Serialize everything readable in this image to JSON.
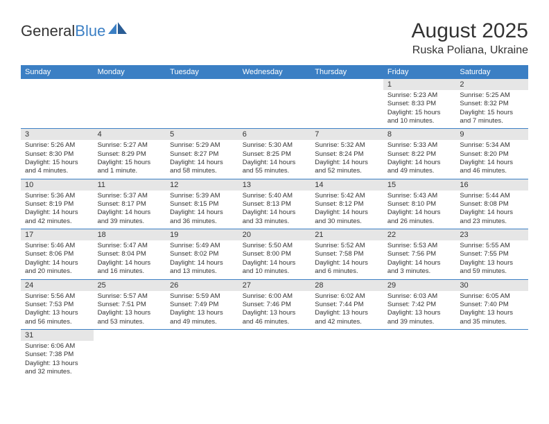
{
  "logo": {
    "text1": "General",
    "text2": "Blue"
  },
  "title": "August 2025",
  "location": "Ruska Poliana, Ukraine",
  "colors": {
    "header_bg": "#3b7fc4",
    "header_text": "#ffffff",
    "date_bg": "#e6e6e6",
    "text": "#333333",
    "divider": "#3b7fc4"
  },
  "daynames": [
    "Sunday",
    "Monday",
    "Tuesday",
    "Wednesday",
    "Thursday",
    "Friday",
    "Saturday"
  ],
  "weeks": [
    [
      null,
      null,
      null,
      null,
      null,
      {
        "date": "1",
        "sunrise": "Sunrise: 5:23 AM",
        "sunset": "Sunset: 8:33 PM",
        "daylight": "Daylight: 15 hours and 10 minutes."
      },
      {
        "date": "2",
        "sunrise": "Sunrise: 5:25 AM",
        "sunset": "Sunset: 8:32 PM",
        "daylight": "Daylight: 15 hours and 7 minutes."
      }
    ],
    [
      {
        "date": "3",
        "sunrise": "Sunrise: 5:26 AM",
        "sunset": "Sunset: 8:30 PM",
        "daylight": "Daylight: 15 hours and 4 minutes."
      },
      {
        "date": "4",
        "sunrise": "Sunrise: 5:27 AM",
        "sunset": "Sunset: 8:29 PM",
        "daylight": "Daylight: 15 hours and 1 minute."
      },
      {
        "date": "5",
        "sunrise": "Sunrise: 5:29 AM",
        "sunset": "Sunset: 8:27 PM",
        "daylight": "Daylight: 14 hours and 58 minutes."
      },
      {
        "date": "6",
        "sunrise": "Sunrise: 5:30 AM",
        "sunset": "Sunset: 8:25 PM",
        "daylight": "Daylight: 14 hours and 55 minutes."
      },
      {
        "date": "7",
        "sunrise": "Sunrise: 5:32 AM",
        "sunset": "Sunset: 8:24 PM",
        "daylight": "Daylight: 14 hours and 52 minutes."
      },
      {
        "date": "8",
        "sunrise": "Sunrise: 5:33 AM",
        "sunset": "Sunset: 8:22 PM",
        "daylight": "Daylight: 14 hours and 49 minutes."
      },
      {
        "date": "9",
        "sunrise": "Sunrise: 5:34 AM",
        "sunset": "Sunset: 8:20 PM",
        "daylight": "Daylight: 14 hours and 46 minutes."
      }
    ],
    [
      {
        "date": "10",
        "sunrise": "Sunrise: 5:36 AM",
        "sunset": "Sunset: 8:19 PM",
        "daylight": "Daylight: 14 hours and 42 minutes."
      },
      {
        "date": "11",
        "sunrise": "Sunrise: 5:37 AM",
        "sunset": "Sunset: 8:17 PM",
        "daylight": "Daylight: 14 hours and 39 minutes."
      },
      {
        "date": "12",
        "sunrise": "Sunrise: 5:39 AM",
        "sunset": "Sunset: 8:15 PM",
        "daylight": "Daylight: 14 hours and 36 minutes."
      },
      {
        "date": "13",
        "sunrise": "Sunrise: 5:40 AM",
        "sunset": "Sunset: 8:13 PM",
        "daylight": "Daylight: 14 hours and 33 minutes."
      },
      {
        "date": "14",
        "sunrise": "Sunrise: 5:42 AM",
        "sunset": "Sunset: 8:12 PM",
        "daylight": "Daylight: 14 hours and 30 minutes."
      },
      {
        "date": "15",
        "sunrise": "Sunrise: 5:43 AM",
        "sunset": "Sunset: 8:10 PM",
        "daylight": "Daylight: 14 hours and 26 minutes."
      },
      {
        "date": "16",
        "sunrise": "Sunrise: 5:44 AM",
        "sunset": "Sunset: 8:08 PM",
        "daylight": "Daylight: 14 hours and 23 minutes."
      }
    ],
    [
      {
        "date": "17",
        "sunrise": "Sunrise: 5:46 AM",
        "sunset": "Sunset: 8:06 PM",
        "daylight": "Daylight: 14 hours and 20 minutes."
      },
      {
        "date": "18",
        "sunrise": "Sunrise: 5:47 AM",
        "sunset": "Sunset: 8:04 PM",
        "daylight": "Daylight: 14 hours and 16 minutes."
      },
      {
        "date": "19",
        "sunrise": "Sunrise: 5:49 AM",
        "sunset": "Sunset: 8:02 PM",
        "daylight": "Daylight: 14 hours and 13 minutes."
      },
      {
        "date": "20",
        "sunrise": "Sunrise: 5:50 AM",
        "sunset": "Sunset: 8:00 PM",
        "daylight": "Daylight: 14 hours and 10 minutes."
      },
      {
        "date": "21",
        "sunrise": "Sunrise: 5:52 AM",
        "sunset": "Sunset: 7:58 PM",
        "daylight": "Daylight: 14 hours and 6 minutes."
      },
      {
        "date": "22",
        "sunrise": "Sunrise: 5:53 AM",
        "sunset": "Sunset: 7:56 PM",
        "daylight": "Daylight: 14 hours and 3 minutes."
      },
      {
        "date": "23",
        "sunrise": "Sunrise: 5:55 AM",
        "sunset": "Sunset: 7:55 PM",
        "daylight": "Daylight: 13 hours and 59 minutes."
      }
    ],
    [
      {
        "date": "24",
        "sunrise": "Sunrise: 5:56 AM",
        "sunset": "Sunset: 7:53 PM",
        "daylight": "Daylight: 13 hours and 56 minutes."
      },
      {
        "date": "25",
        "sunrise": "Sunrise: 5:57 AM",
        "sunset": "Sunset: 7:51 PM",
        "daylight": "Daylight: 13 hours and 53 minutes."
      },
      {
        "date": "26",
        "sunrise": "Sunrise: 5:59 AM",
        "sunset": "Sunset: 7:49 PM",
        "daylight": "Daylight: 13 hours and 49 minutes."
      },
      {
        "date": "27",
        "sunrise": "Sunrise: 6:00 AM",
        "sunset": "Sunset: 7:46 PM",
        "daylight": "Daylight: 13 hours and 46 minutes."
      },
      {
        "date": "28",
        "sunrise": "Sunrise: 6:02 AM",
        "sunset": "Sunset: 7:44 PM",
        "daylight": "Daylight: 13 hours and 42 minutes."
      },
      {
        "date": "29",
        "sunrise": "Sunrise: 6:03 AM",
        "sunset": "Sunset: 7:42 PM",
        "daylight": "Daylight: 13 hours and 39 minutes."
      },
      {
        "date": "30",
        "sunrise": "Sunrise: 6:05 AM",
        "sunset": "Sunset: 7:40 PM",
        "daylight": "Daylight: 13 hours and 35 minutes."
      }
    ],
    [
      {
        "date": "31",
        "sunrise": "Sunrise: 6:06 AM",
        "sunset": "Sunset: 7:38 PM",
        "daylight": "Daylight: 13 hours and 32 minutes."
      },
      null,
      null,
      null,
      null,
      null,
      null
    ]
  ]
}
